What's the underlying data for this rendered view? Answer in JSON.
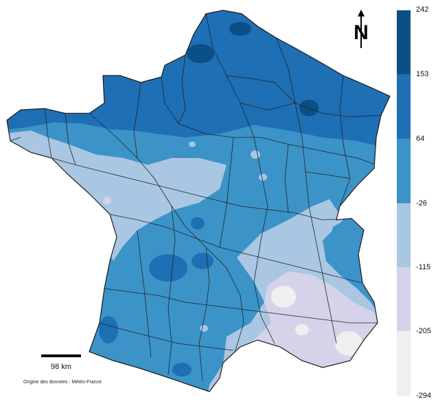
{
  "map": {
    "legend": {
      "breaks": [
        "242",
        "153",
        "64",
        "-26",
        "-115",
        "-205",
        "-294"
      ],
      "colors": [
        "#0b4f86",
        "#1f6fb5",
        "#3b93c8",
        "#a9c6e3",
        "#d4d3ea",
        "#efefef"
      ]
    },
    "scale_bar": {
      "label": "98 km"
    },
    "source": "Origine des données : Météo-France",
    "north_arrow": {
      "letter": "N",
      "icon": "north-arrow-icon"
    }
  }
}
